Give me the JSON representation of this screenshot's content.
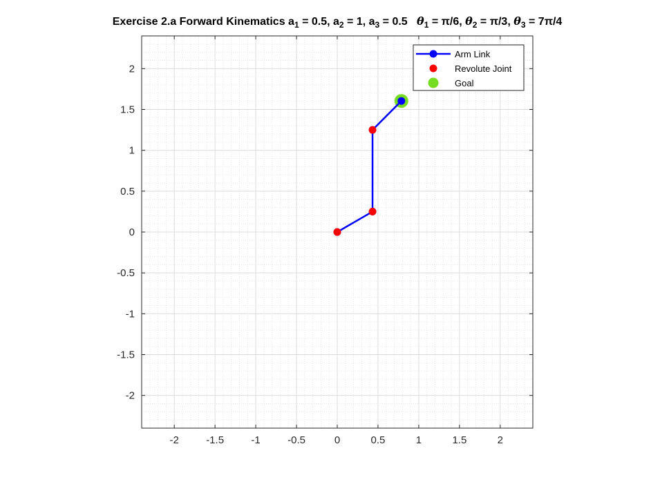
{
  "chart_data": {
    "type": "line",
    "title": {
      "prefix": "Exercise 2.a Forward Kinematics",
      "link_lengths": [
        {
          "symbol": "a",
          "sub": "1",
          "value": "= 0.5,"
        },
        {
          "symbol": "a",
          "sub": "2",
          "value": "= 1,"
        },
        {
          "symbol": "a",
          "sub": "3",
          "value": "= 0.5"
        }
      ],
      "joint_angles": [
        {
          "symbol": "θ",
          "sub": "1",
          "value": "= π/6,"
        },
        {
          "symbol": "θ",
          "sub": "2",
          "value": "= π/3,"
        },
        {
          "symbol": "θ",
          "sub": "3",
          "value": "= 7π/4"
        }
      ]
    },
    "xlabel": "",
    "ylabel": "",
    "xlim": [
      -2.4,
      2.4
    ],
    "ylim": [
      -2.4,
      2.4
    ],
    "grid": "minor",
    "legend_location": "top-right",
    "x_ticks": [
      "-2",
      "-1.5",
      "-1",
      "-0.5",
      "0",
      "0.5",
      "1",
      "1.5",
      "2"
    ],
    "y_ticks": [
      "2",
      "1.5",
      "1",
      "0.5",
      "0",
      "-0.5",
      "-1",
      "-1.5",
      "-2"
    ],
    "series": [
      {
        "name": "Arm Link",
        "style": "line-with-markers",
        "color": "#0000ff",
        "x": [
          0,
          0.433,
          0.433,
          0.787
        ],
        "y": [
          0,
          0.25,
          1.25,
          1.604
        ]
      },
      {
        "name": "Revolute Joint",
        "style": "markers",
        "color": "#ff0000",
        "x": [
          0,
          0.433,
          0.433
        ],
        "y": [
          0,
          0.25,
          1.25
        ]
      },
      {
        "name": "Goal",
        "style": "markers",
        "color": "#77dd22",
        "x": [
          0.787
        ],
        "y": [
          1.604
        ]
      }
    ]
  }
}
